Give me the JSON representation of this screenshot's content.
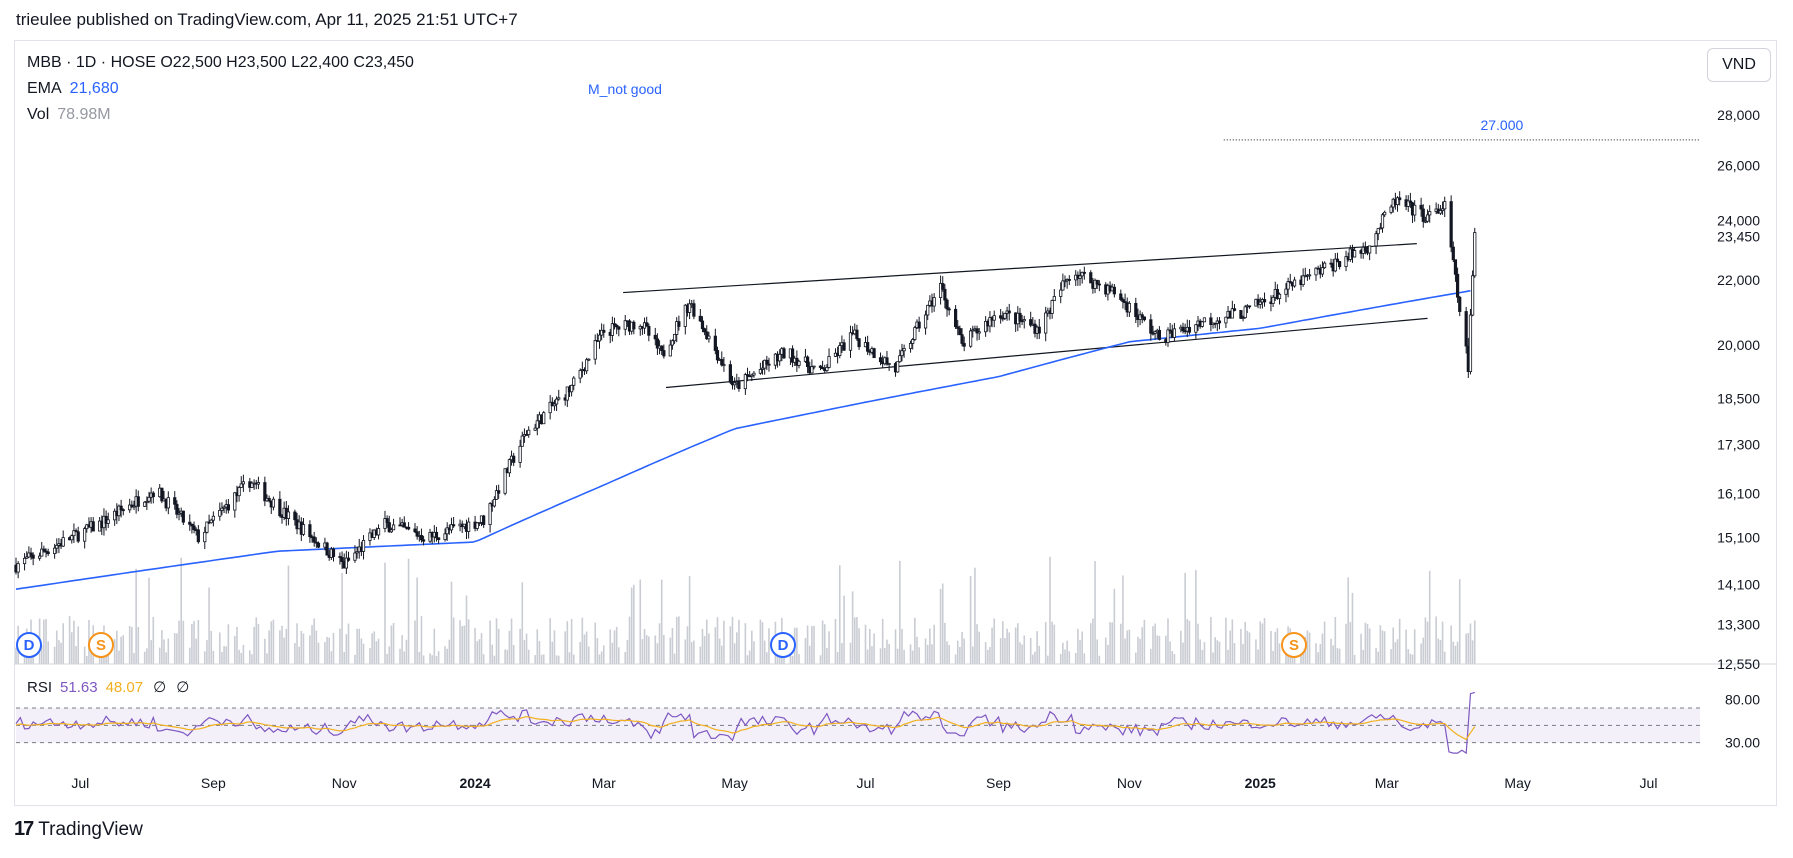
{
  "publish_line": "trieulee published on TradingView.com, Apr 11, 2025 21:51 UTC+7",
  "legend": {
    "symbol_line": "MBB · 1D · HOSE   O22,500   H23,500   L22,400   C23,450",
    "ema_label": "EMA",
    "ema_value": "21,680",
    "vol_label": "Vol",
    "vol_value": "78.98M"
  },
  "annotation": "M_not good",
  "target_label": "27.000",
  "currency": "VND",
  "events": {
    "dividend": "D",
    "split": "S"
  },
  "rsi": {
    "label": "RSI",
    "value": "51.63",
    "ma": "48.07",
    "extra1": "∅",
    "extra2": "∅"
  },
  "footer": {
    "logo": "17",
    "brand": "TradingView"
  },
  "colors": {
    "ema": "#2962ff",
    "rsi": "#7e57c2",
    "rsi_ma": "#f2b01e",
    "candle": "#131722",
    "volume": "#c9ccd3",
    "dividend": "#2962ff",
    "split": "#f7931a"
  },
  "chart_data": [
    {
      "type": "candlestick",
      "title": "MBB · 1D · HOSE",
      "scale": "log",
      "ylim": [
        12550,
        28000
      ],
      "y_ticks": [
        "28,000",
        "26,000",
        "24,000",
        "23,450",
        "22,000",
        "20,000",
        "18,500",
        "17,300",
        "16,100",
        "15,100",
        "14,100",
        "13,300",
        "12,550"
      ],
      "x_ticks": [
        "Jul",
        "Sep",
        "Nov",
        "2024",
        "Mar",
        "May",
        "Jul",
        "Sep",
        "Nov",
        "2025",
        "Mar",
        "May",
        "Jul"
      ],
      "x_range": [
        "2023-06",
        "2025-07"
      ],
      "last": {
        "open": 22500,
        "high": 23500,
        "low": 22400,
        "close": 23450
      },
      "price_path": [
        {
          "date": "2023-06-01",
          "close": 14500
        },
        {
          "date": "2023-07-10",
          "close": 15400
        },
        {
          "date": "2023-08-05",
          "close": 16200
        },
        {
          "date": "2023-08-25",
          "close": 15100
        },
        {
          "date": "2023-09-18",
          "close": 16400
        },
        {
          "date": "2023-10-05",
          "close": 15600
        },
        {
          "date": "2023-11-01",
          "close": 14500
        },
        {
          "date": "2023-11-20",
          "close": 15400
        },
        {
          "date": "2023-12-10",
          "close": 15100
        },
        {
          "date": "2024-01-05",
          "close": 15500
        },
        {
          "date": "2024-01-25",
          "close": 17600
        },
        {
          "date": "2024-02-15",
          "close": 18800
        },
        {
          "date": "2024-03-01",
          "close": 20400
        },
        {
          "date": "2024-03-18",
          "close": 20700
        },
        {
          "date": "2024-03-28",
          "close": 19700
        },
        {
          "date": "2024-04-10",
          "close": 21300
        },
        {
          "date": "2024-05-01",
          "close": 18800
        },
        {
          "date": "2024-05-25",
          "close": 19800
        },
        {
          "date": "2024-06-10",
          "close": 19200
        },
        {
          "date": "2024-06-25",
          "close": 20300
        },
        {
          "date": "2024-07-15",
          "close": 19300
        },
        {
          "date": "2024-08-05",
          "close": 21800
        },
        {
          "date": "2024-08-15",
          "close": 20000
        },
        {
          "date": "2024-09-01",
          "close": 21000
        },
        {
          "date": "2024-09-20",
          "close": 20500
        },
        {
          "date": "2024-10-05",
          "close": 22300
        },
        {
          "date": "2024-10-25",
          "close": 21600
        },
        {
          "date": "2024-11-15",
          "close": 20200
        },
        {
          "date": "2024-12-05",
          "close": 20700
        },
        {
          "date": "2024-12-25",
          "close": 21000
        },
        {
          "date": "2025-01-10",
          "close": 21600
        },
        {
          "date": "2025-02-01",
          "close": 22400
        },
        {
          "date": "2025-02-20",
          "close": 23100
        },
        {
          "date": "2025-03-05",
          "close": 24700
        },
        {
          "date": "2025-03-20",
          "close": 24100
        },
        {
          "date": "2025-03-28",
          "close": 24500
        },
        {
          "date": "2025-04-03",
          "close": 21500
        },
        {
          "date": "2025-04-08",
          "close": 19400
        },
        {
          "date": "2025-04-11",
          "close": 23450
        }
      ],
      "ema": [
        {
          "date": "2023-06-01",
          "value": 14000
        },
        {
          "date": "2023-10-01",
          "value": 14800
        },
        {
          "date": "2024-01-01",
          "value": 15000
        },
        {
          "date": "2024-03-01",
          "value": 16300
        },
        {
          "date": "2024-05-01",
          "value": 17700
        },
        {
          "date": "2024-07-01",
          "value": 18400
        },
        {
          "date": "2024-09-01",
          "value": 19100
        },
        {
          "date": "2024-11-01",
          "value": 20100
        },
        {
          "date": "2025-01-01",
          "value": 20500
        },
        {
          "date": "2025-03-01",
          "value": 21200
        },
        {
          "date": "2025-04-11",
          "value": 21680
        }
      ],
      "trendlines": [
        {
          "name": "upper",
          "from": {
            "date": "2024-03-10",
            "value": 21600
          },
          "to": {
            "date": "2025-03-15",
            "value": 23200
          }
        },
        {
          "name": "lower",
          "from": {
            "date": "2024-03-30",
            "value": 18800
          },
          "to": {
            "date": "2025-03-20",
            "value": 20800
          }
        }
      ],
      "horizontal_level": {
        "value": 27000,
        "label": "27.000",
        "from": "2024-12-15"
      },
      "volume": {
        "last": 78.98,
        "unit": "M"
      },
      "events": [
        {
          "type": "dividend",
          "date": "2023-06-05"
        },
        {
          "type": "split",
          "date": "2023-07-15"
        },
        {
          "type": "dividend",
          "date": "2024-05-15"
        },
        {
          "type": "split",
          "date": "2025-01-25"
        }
      ]
    },
    {
      "type": "line",
      "title": "RSI",
      "ylim": [
        10,
        100
      ],
      "y_ticks": [
        "80.00",
        "30.00"
      ],
      "bands": [
        70,
        50,
        30
      ],
      "series": [
        {
          "name": "RSI",
          "values": [
            51.63
          ]
        },
        {
          "name": "MA",
          "values": [
            48.07
          ]
        }
      ]
    }
  ]
}
